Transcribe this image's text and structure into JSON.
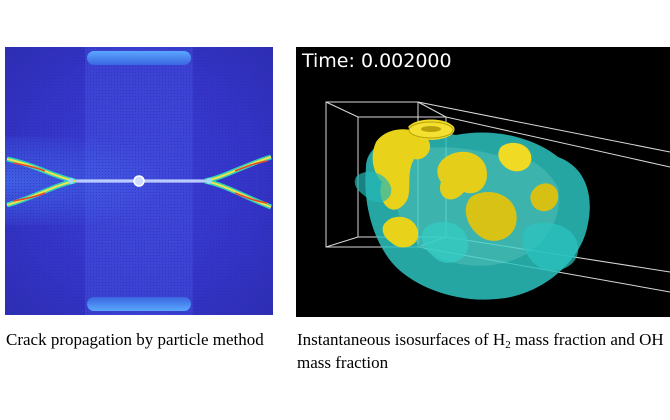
{
  "left_figure": {
    "caption": "Crack propagation by particle method"
  },
  "right_figure": {
    "time_label": "Time: 0.002000",
    "caption_part1": "Instantaneous isosurfaces of H",
    "caption_subscript": "2",
    "caption_part2": " mass fraction and OH mass fraction"
  }
}
